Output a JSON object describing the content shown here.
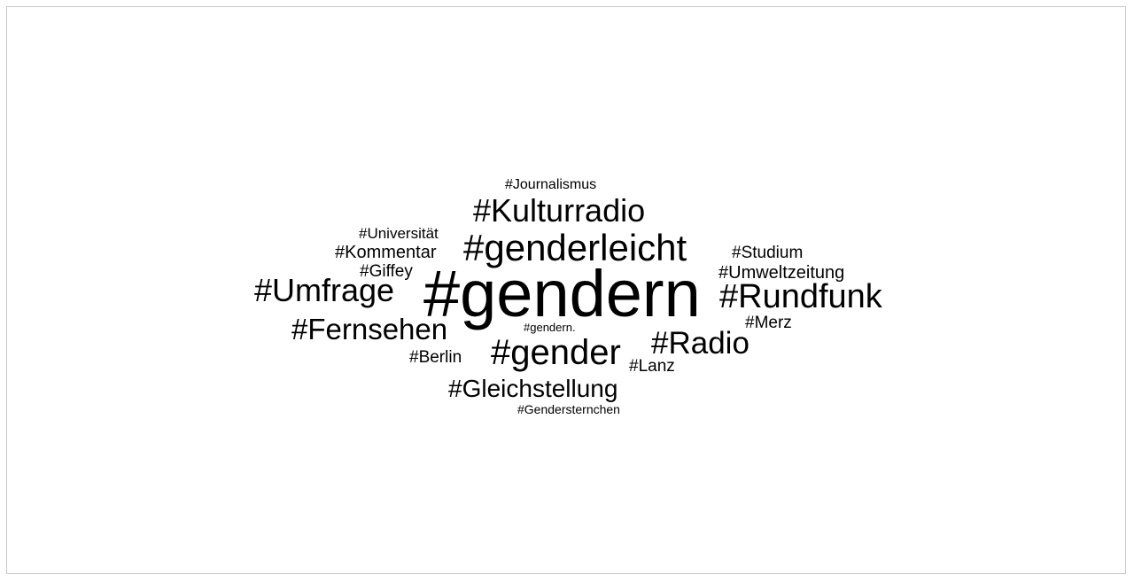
{
  "words": [
    {
      "text": "#Journalismus",
      "weight": 2
    },
    {
      "text": "#Kulturradio",
      "weight": 5
    },
    {
      "text": "#Universität",
      "weight": 2
    },
    {
      "text": "#genderleicht",
      "weight": 6
    },
    {
      "text": "#Kommentar",
      "weight": 3
    },
    {
      "text": "#Studium",
      "weight": 3
    },
    {
      "text": "#Giffey",
      "weight": 3
    },
    {
      "text": "#Umweltzeitung",
      "weight": 3
    },
    {
      "text": "#Umfrage",
      "weight": 5
    },
    {
      "text": "#gendern",
      "weight": 10
    },
    {
      "text": "#Rundfunk",
      "weight": 5
    },
    {
      "text": "#Merz",
      "weight": 3
    },
    {
      "text": "#Fernsehen",
      "weight": 5
    },
    {
      "text": "#gendern.",
      "weight": 1
    },
    {
      "text": "#Radio",
      "weight": 5
    },
    {
      "text": "#gender",
      "weight": 6
    },
    {
      "text": "#Berlin",
      "weight": 3
    },
    {
      "text": "#Lanz",
      "weight": 3
    },
    {
      "text": "#Gleichstellung",
      "weight": 4
    },
    {
      "text": "#Gendersternchen",
      "weight": 2
    }
  ]
}
